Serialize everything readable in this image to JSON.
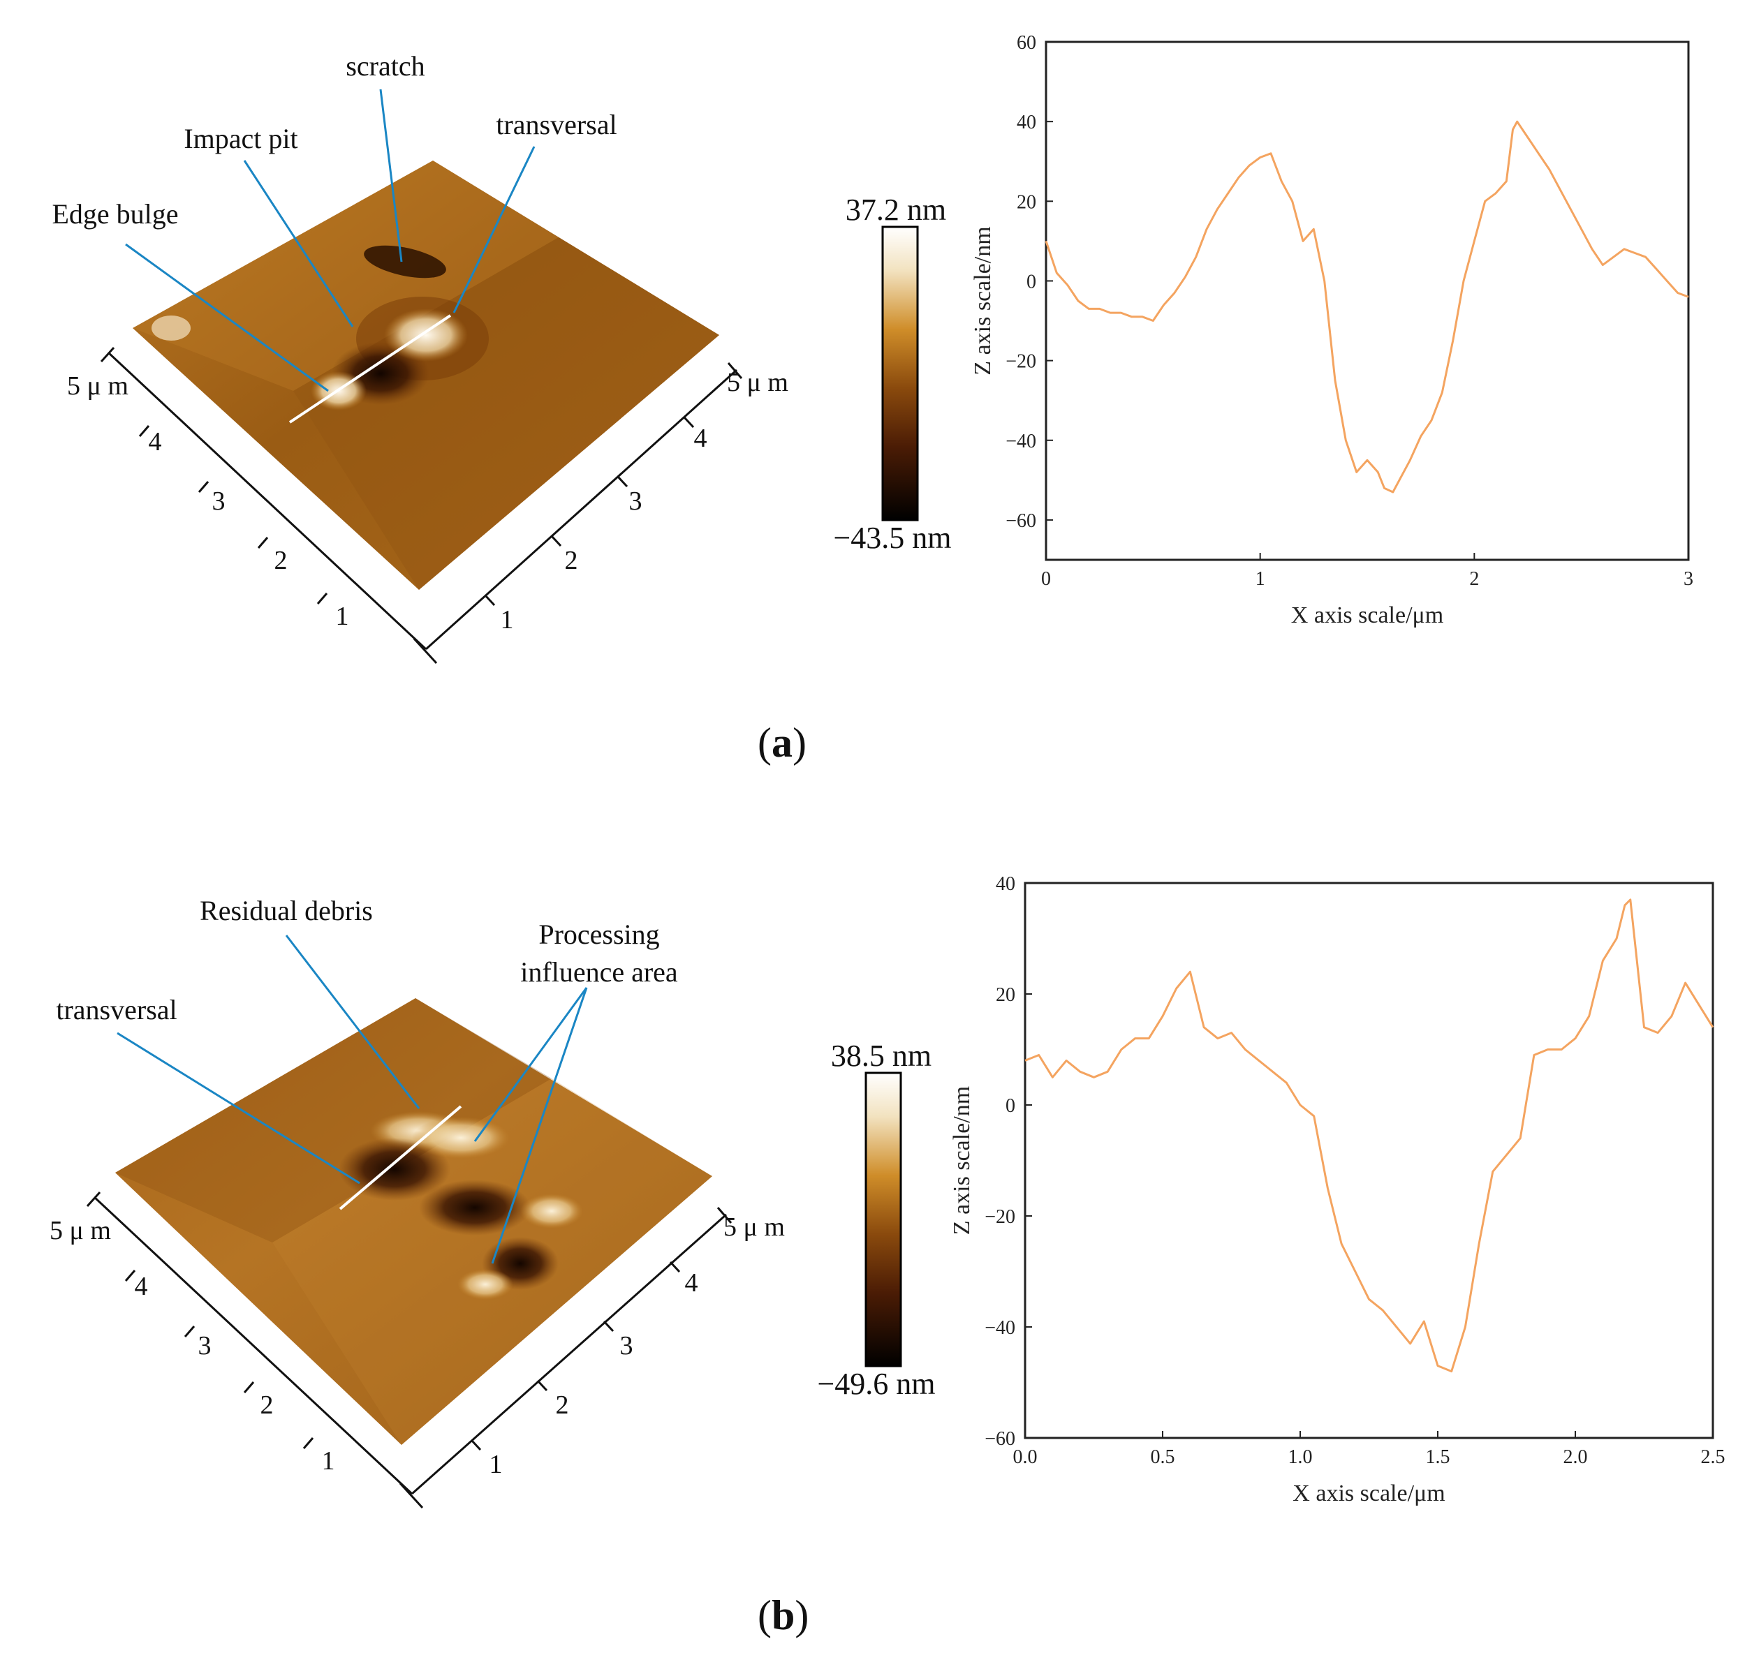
{
  "panels": [
    {
      "id": "a",
      "label": "a",
      "afm": {
        "annotations": [
          "Edge bulge",
          "Impact pit",
          "scratch",
          "transversal"
        ],
        "axis_left_label": "5 μ m",
        "axis_right_label": "5 μ m",
        "axis_left_ticks": [
          "1",
          "2",
          "3",
          "4"
        ],
        "axis_right_ticks": [
          "1",
          "2",
          "3",
          "4"
        ]
      },
      "colorbar": {
        "max_label": "37.2 nm",
        "min_label": "−43.5 nm",
        "max": 37.2,
        "min": -43.5
      }
    },
    {
      "id": "b",
      "label": "b",
      "afm": {
        "annotations": [
          "transversal",
          "Residual debris",
          "Processing",
          "influence area"
        ],
        "axis_left_label": "5 μ m",
        "axis_right_label": "5 μ m",
        "axis_left_ticks": [
          "1",
          "2",
          "3",
          "4"
        ],
        "axis_right_ticks": [
          "1",
          "2",
          "3",
          "4"
        ]
      },
      "colorbar": {
        "max_label": "38.5 nm",
        "min_label": "−49.6 nm",
        "max": 38.5,
        "min": -49.6
      }
    }
  ],
  "colors": {
    "profile_line": "#f4a460",
    "afm_light": "#f7e8c8",
    "afm_mid": "#b8761a",
    "afm_dark": "#2a1000",
    "leader_line": "#1a86c4"
  },
  "chart_data": [
    {
      "type": "line",
      "xlabel": "X axis scale/μm",
      "ylabel": "Z axis scale/nm",
      "xlim": [
        0,
        3
      ],
      "ylim": [
        -70,
        60
      ],
      "xticks": [
        0,
        1,
        2,
        3
      ],
      "xtick_labels": [
        "0",
        "1",
        "2",
        "3"
      ],
      "yticks": [
        -60,
        -40,
        -20,
        0,
        20,
        40,
        60
      ],
      "ytick_labels": [
        "−60",
        "−40",
        "−20",
        "0",
        "20",
        "40",
        "60"
      ],
      "grid": false,
      "series": [
        {
          "x": [
            0,
            0.05,
            0.1,
            0.15,
            0.2,
            0.25,
            0.3,
            0.35,
            0.4,
            0.45,
            0.5,
            0.55,
            0.6,
            0.65,
            0.7,
            0.75,
            0.8,
            0.85,
            0.9,
            0.95,
            1.0,
            1.05,
            1.1,
            1.15,
            1.2,
            1.25,
            1.3,
            1.35,
            1.4,
            1.45,
            1.5,
            1.55,
            1.58,
            1.62,
            1.65,
            1.7,
            1.75,
            1.8,
            1.85,
            1.9,
            1.95,
            2.0,
            2.05,
            2.1,
            2.15,
            2.18,
            2.2,
            2.25,
            2.3,
            2.35,
            2.4,
            2.45,
            2.5,
            2.55,
            2.6,
            2.65,
            2.7,
            2.75,
            2.8,
            2.85,
            2.9,
            2.95,
            3.0
          ],
          "y": [
            10,
            2,
            -1,
            -5,
            -7,
            -7,
            -8,
            -8,
            -9,
            -9,
            -10,
            -6,
            -3,
            1,
            6,
            13,
            18,
            22,
            26,
            29,
            31,
            32,
            25,
            20,
            10,
            13,
            0,
            -25,
            -40,
            -48,
            -45,
            -48,
            -52,
            -53,
            -50,
            -45,
            -39,
            -35,
            -28,
            -15,
            0,
            10,
            20,
            22,
            25,
            38,
            40,
            36,
            32,
            28,
            23,
            18,
            13,
            8,
            4,
            6,
            8,
            7,
            6,
            3,
            0,
            -3,
            -4
          ]
        }
      ]
    },
    {
      "type": "line",
      "xlabel": "X axis scale/μm",
      "ylabel": "Z axis scale/nm",
      "xlim": [
        0,
        2.5
      ],
      "ylim": [
        -60,
        40
      ],
      "xticks": [
        0,
        0.5,
        1.0,
        1.5,
        2.0,
        2.5
      ],
      "xtick_labels": [
        "0.0",
        "0.5",
        "1.0",
        "1.5",
        "2.0",
        "2.5"
      ],
      "yticks": [
        -60,
        -40,
        -20,
        0,
        20,
        40
      ],
      "ytick_labels": [
        "−60",
        "−40",
        "−20",
        "0",
        "20",
        "40"
      ],
      "grid": false,
      "series": [
        {
          "x": [
            0,
            0.05,
            0.1,
            0.15,
            0.2,
            0.25,
            0.3,
            0.35,
            0.4,
            0.45,
            0.5,
            0.55,
            0.6,
            0.65,
            0.7,
            0.75,
            0.8,
            0.85,
            0.9,
            0.95,
            1.0,
            1.05,
            1.1,
            1.15,
            1.2,
            1.25,
            1.3,
            1.35,
            1.4,
            1.45,
            1.5,
            1.55,
            1.6,
            1.65,
            1.7,
            1.75,
            1.8,
            1.85,
            1.9,
            1.95,
            2.0,
            2.05,
            2.1,
            2.15,
            2.18,
            2.2,
            2.25,
            2.3,
            2.35,
            2.4,
            2.45,
            2.5
          ],
          "y": [
            8,
            9,
            5,
            8,
            6,
            5,
            6,
            10,
            12,
            12,
            16,
            21,
            24,
            14,
            12,
            13,
            10,
            8,
            6,
            4,
            0,
            -2,
            -15,
            -25,
            -30,
            -35,
            -37,
            -40,
            -43,
            -39,
            -47,
            -48,
            -40,
            -25,
            -12,
            -9,
            -6,
            9,
            10,
            10,
            12,
            16,
            26,
            30,
            36,
            37,
            14,
            13,
            16,
            22,
            18,
            14
          ]
        }
      ]
    }
  ]
}
